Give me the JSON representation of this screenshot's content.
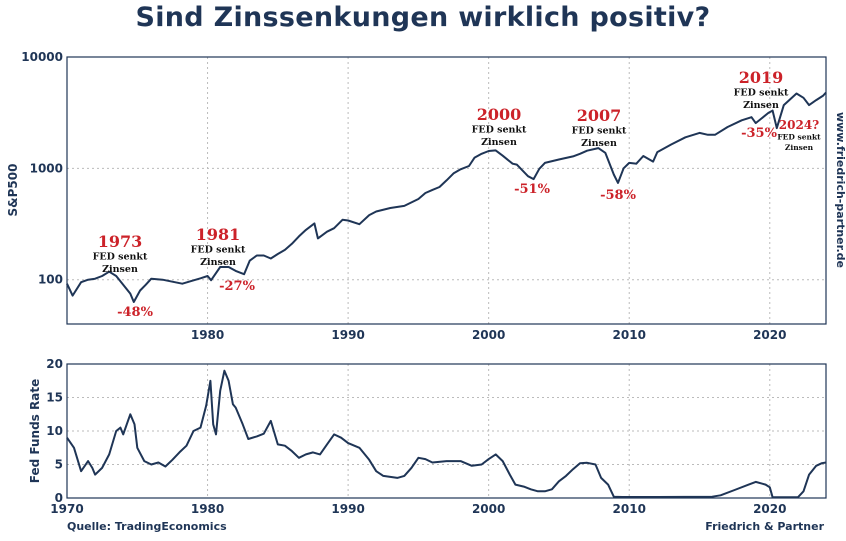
{
  "title": "Sind Zinssenkungen wirklich positiv?",
  "source": "Quelle: TradingEconomics",
  "brand": "Friedrich & Partner",
  "website": "www.friedrich-partner.de",
  "colors": {
    "line": "#1f3556",
    "accent": "#cc2229",
    "grid": "#bbbbbb"
  },
  "chart_data": [
    {
      "type": "line",
      "title": "S&P500",
      "ylabel": "S&P500",
      "xlabel": "",
      "yscale": "log",
      "xlim": [
        1970,
        2024
      ],
      "ylim": [
        40,
        10000
      ],
      "yticks": [
        100,
        1000,
        10000
      ],
      "ytick_labels": [
        "100",
        "1000",
        "10000"
      ],
      "xticks": [
        1980,
        1990,
        2000,
        2010,
        2020
      ],
      "xtick_labels": [
        "1980",
        "1990",
        "2000",
        "2010",
        "2020"
      ],
      "grid": true,
      "series": [
        {
          "name": "S&P500",
          "x": [
            1970.0,
            1970.4,
            1971.0,
            1971.5,
            1972.0,
            1972.5,
            1973.0,
            1973.5,
            1974.0,
            1974.5,
            1974.75,
            1975.2,
            1975.6,
            1976.0,
            1976.8,
            1977.5,
            1978.2,
            1978.8,
            1979.5,
            1980.0,
            1980.25,
            1980.9,
            1981.5,
            1982.0,
            1982.6,
            1983.0,
            1983.5,
            1984.0,
            1984.5,
            1985.0,
            1985.5,
            1986.0,
            1986.5,
            1987.0,
            1987.6,
            1987.85,
            1988.5,
            1989.0,
            1989.6,
            1990.0,
            1990.8,
            1991.5,
            1992.0,
            1993.0,
            1994.0,
            1995.0,
            1995.5,
            1996.0,
            1996.5,
            1997.0,
            1997.5,
            1998.0,
            1998.6,
            1999.0,
            1999.5,
            2000.0,
            2000.5,
            2001.0,
            2001.7,
            2002.0,
            2002.8,
            2003.2,
            2003.6,
            2004.0,
            2005.0,
            2006.0,
            2006.5,
            2007.0,
            2007.8,
            2008.3,
            2008.9,
            2009.2,
            2009.6,
            2010.0,
            2010.5,
            2011.0,
            2011.7,
            2012.0,
            2013.0,
            2014.0,
            2015.0,
            2015.6,
            2016.1,
            2017.0,
            2018.0,
            2018.7,
            2019.0,
            2019.9,
            2020.2,
            2020.5,
            2021.0,
            2021.9,
            2022.4,
            2022.8,
            2023.3,
            2023.8,
            2024.0
          ],
          "values": [
            92,
            72,
            95,
            100,
            102,
            108,
            118,
            108,
            90,
            75,
            63,
            80,
            90,
            102,
            100,
            96,
            92,
            97,
            103,
            108,
            99,
            130,
            130,
            120,
            112,
            148,
            165,
            165,
            155,
            170,
            185,
            210,
            245,
            280,
            320,
            235,
            270,
            290,
            345,
            340,
            315,
            380,
            410,
            440,
            460,
            530,
            600,
            640,
            680,
            780,
            900,
            980,
            1050,
            1250,
            1350,
            1430,
            1450,
            1300,
            1100,
            1080,
            850,
            800,
            990,
            1120,
            1200,
            1280,
            1350,
            1440,
            1520,
            1380,
            880,
            740,
            1000,
            1120,
            1100,
            1290,
            1150,
            1400,
            1640,
            1900,
            2080,
            2000,
            2000,
            2350,
            2700,
            2880,
            2550,
            3150,
            3300,
            2300,
            3700,
            4700,
            4300,
            3700,
            4100,
            4500,
            4800
          ]
        }
      ],
      "annotations": [
        {
          "year": "1973",
          "note1": "FED senkt",
          "note2": "Zinsen",
          "drop": "-48%"
        },
        {
          "year": "1981",
          "note1": "FED senkt",
          "note2": "Zinsen",
          "drop": "-27%"
        },
        {
          "year": "2000",
          "note1": "FED senkt",
          "note2": "Zinsen",
          "drop": "-51%"
        },
        {
          "year": "2007",
          "note1": "FED senkt",
          "note2": "Zinsen",
          "drop": "-58%"
        },
        {
          "year": "2019",
          "note1": "FED senkt",
          "note2": "Zinsen",
          "drop": "-35%"
        },
        {
          "year": "2024?",
          "note1": "FED senkt",
          "note2": "Zinsen",
          "drop": ""
        }
      ]
    },
    {
      "type": "line",
      "title": "Fed Funds Rate",
      "ylabel": "Fed Funds Rate",
      "xlabel": "",
      "xlim": [
        1970,
        2024
      ],
      "ylim": [
        0,
        20
      ],
      "yticks": [
        0,
        5,
        10,
        15,
        20
      ],
      "ytick_labels": [
        "0",
        "5",
        "10",
        "15",
        "20"
      ],
      "xticks": [
        1970,
        1980,
        1990,
        2000,
        2010,
        2020
      ],
      "xtick_labels": [
        "1970",
        "1980",
        "1990",
        "2000",
        "2010",
        "2020"
      ],
      "grid": true,
      "series": [
        {
          "name": "Fed Funds Rate",
          "x": [
            1970.0,
            1970.5,
            1971.0,
            1971.5,
            1971.8,
            1972.0,
            1972.5,
            1973.0,
            1973.5,
            1973.8,
            1974.0,
            1974.5,
            1974.8,
            1975.0,
            1975.5,
            1976.0,
            1976.5,
            1977.0,
            1977.5,
            1978.0,
            1978.5,
            1979.0,
            1979.5,
            1979.9,
            1980.2,
            1980.4,
            1980.6,
            1980.9,
            1981.2,
            1981.5,
            1981.8,
            1982.0,
            1982.5,
            1982.9,
            1983.5,
            1984.0,
            1984.5,
            1985.0,
            1985.5,
            1986.0,
            1986.5,
            1987.0,
            1987.5,
            1988.0,
            1988.5,
            1989.0,
            1989.5,
            1990.0,
            1990.8,
            1991.5,
            1992.0,
            1992.5,
            1993.5,
            1994.0,
            1994.5,
            1995.0,
            1995.5,
            1996.0,
            1997.0,
            1998.0,
            1998.8,
            1999.5,
            2000.0,
            2000.5,
            2001.0,
            2001.5,
            2001.9,
            2002.5,
            2003.0,
            2003.5,
            2004.0,
            2004.5,
            2005.0,
            2005.5,
            2006.0,
            2006.5,
            2007.0,
            2007.6,
            2008.0,
            2008.5,
            2008.9,
            2009.5,
            2012.0,
            2015.9,
            2016.5,
            2017.5,
            2018.5,
            2019.0,
            2019.7,
            2020.0,
            2020.2,
            2021.0,
            2022.0,
            2022.4,
            2022.8,
            2023.3,
            2023.7,
            2024.0
          ],
          "values": [
            9.0,
            7.5,
            4.0,
            5.5,
            4.5,
            3.5,
            4.5,
            6.5,
            10.0,
            10.5,
            9.5,
            12.5,
            11.0,
            7.5,
            5.5,
            5.0,
            5.3,
            4.7,
            5.7,
            6.8,
            7.8,
            10.0,
            10.5,
            13.8,
            17.5,
            11.0,
            9.5,
            16.0,
            19.0,
            17.5,
            14.0,
            13.5,
            11.0,
            8.8,
            9.2,
            9.6,
            11.5,
            8.0,
            7.8,
            7.0,
            6.0,
            6.5,
            6.8,
            6.5,
            8.0,
            9.5,
            9.0,
            8.2,
            7.5,
            5.7,
            4.0,
            3.3,
            3.0,
            3.3,
            4.5,
            6.0,
            5.8,
            5.3,
            5.5,
            5.5,
            4.8,
            5.0,
            5.8,
            6.5,
            5.5,
            3.5,
            2.0,
            1.7,
            1.3,
            1.0,
            1.0,
            1.3,
            2.5,
            3.3,
            4.3,
            5.2,
            5.25,
            5.0,
            3.0,
            2.0,
            0.2,
            0.15,
            0.15,
            0.2,
            0.4,
            1.2,
            2.0,
            2.4,
            2.0,
            1.6,
            0.1,
            0.1,
            0.1,
            1.0,
            3.5,
            4.8,
            5.2,
            5.3
          ]
        }
      ]
    }
  ]
}
